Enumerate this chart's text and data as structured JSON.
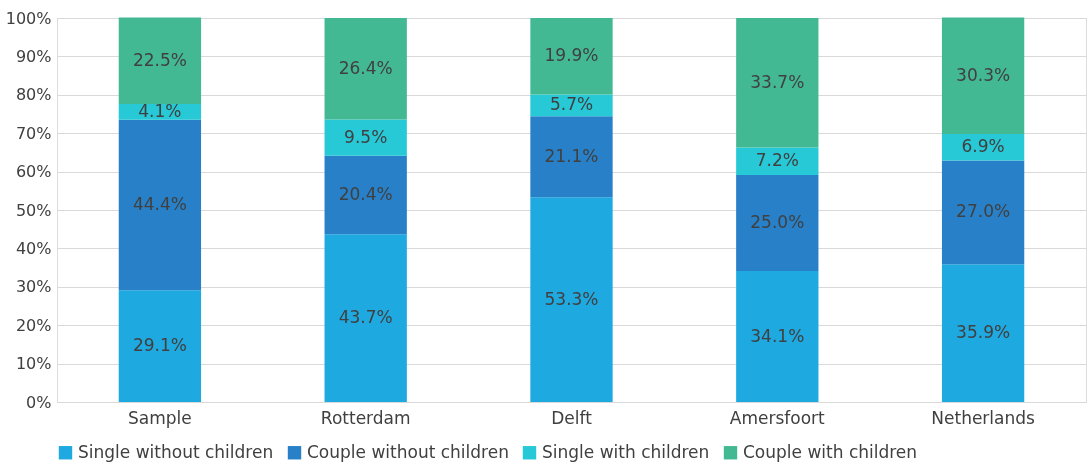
{
  "chart_data": {
    "type": "bar",
    "stacked": true,
    "categories": [
      "Sample",
      "Rotterdam",
      "Delft",
      "Amersfoort",
      "Netherlands"
    ],
    "series": [
      {
        "name": "Single without children",
        "color": "#1fa9e1",
        "values": [
          29.1,
          43.7,
          53.3,
          34.1,
          35.9
        ],
        "value_labels": [
          "29.1%",
          "43.7%",
          "53.3%",
          "34.1%",
          "35.9%"
        ]
      },
      {
        "name": "Couple without children",
        "color": "#2880c8",
        "values": [
          44.4,
          20.4,
          21.1,
          25.0,
          27.0
        ],
        "value_labels": [
          "44.4%",
          "20.4%",
          "21.1%",
          "25.0%",
          "27.0%"
        ]
      },
      {
        "name": "Single with children",
        "color": "#27c9d6",
        "values": [
          4.1,
          9.5,
          5.7,
          7.2,
          6.9
        ],
        "value_labels": [
          "4.1%",
          "9.5%",
          "5.7%",
          "7.2%",
          "6.9%"
        ]
      },
      {
        "name": "Couple with children",
        "color": "#43b993",
        "values": [
          22.5,
          26.4,
          19.9,
          33.7,
          30.3
        ],
        "value_labels": [
          "22.5%",
          "26.4%",
          "19.9%",
          "33.7%",
          "30.3%"
        ]
      }
    ],
    "ylim": [
      0,
      100
    ],
    "yticks": [
      {
        "value": 0,
        "label": "0%"
      },
      {
        "value": 10,
        "label": "10%"
      },
      {
        "value": 20,
        "label": "20%"
      },
      {
        "value": 30,
        "label": "30%"
      },
      {
        "value": 40,
        "label": "40%"
      },
      {
        "value": 50,
        "label": "50%"
      },
      {
        "value": 60,
        "label": "60%"
      },
      {
        "value": 70,
        "label": "70%"
      },
      {
        "value": 80,
        "label": "80%"
      },
      {
        "value": 90,
        "label": "90%"
      },
      {
        "value": 100,
        "label": "100%"
      }
    ],
    "grid": "y",
    "legend": "bottom"
  }
}
